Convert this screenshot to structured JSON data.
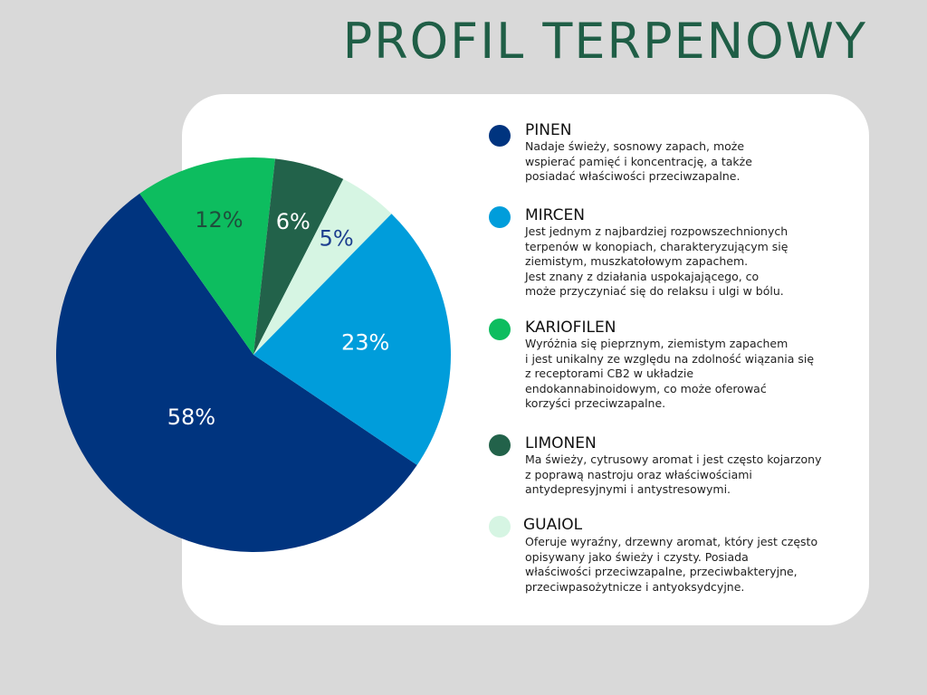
{
  "title": "PROFIL TERPENOWY",
  "chart_data": {
    "type": "pie",
    "slices": [
      {
        "label": "PINEN",
        "value": 58,
        "display": "58%",
        "color": "#00347f",
        "label_color": "#ffffff"
      },
      {
        "label": "KARIOFILEN",
        "value": 12,
        "display": "12%",
        "color": "#0dbd5f",
        "label_color": "#1f4e3c"
      },
      {
        "label": "LIMONEN",
        "value": 6,
        "display": "6%",
        "color": "#22624a",
        "label_color": "#ffffff"
      },
      {
        "label": "GUAIOL",
        "value": 5,
        "display": "5%",
        "color": "#d6f5e3",
        "label_color": "#1d3f8f"
      },
      {
        "label": "MIRCEN",
        "value": 23,
        "display": "23%",
        "color": "#009ddb",
        "label_color": "#ffffff"
      }
    ]
  },
  "legend": [
    {
      "name": "PINEN",
      "color": "#00347f",
      "desc": "Nadaje świeży, sosnowy zapach, może\nwspierać pamięć i koncentrację, a także\nposiadać właściwości przeciwzapalne."
    },
    {
      "name": "MIRCEN",
      "color": "#009ddb",
      "desc": "Jest jednym z najbardziej rozpowszechnionych\nterpenów w konopiach, charakteryzującym się\nziemistym, muszkatołowym zapachem.\nJest znany z działania uspokajającego, co\nmoże przyczyniać się do relaksu i ulgi w bólu."
    },
    {
      "name": "KARIOFILEN",
      "color": "#0dbd5f",
      "desc": "Wyróżnia się pieprznym, ziemistym zapachem\ni jest unikalny ze względu na zdolność wiązania się\nz receptorami CB2 w układzie\nendokannabinoidowym, co może oferować\nkorzyści przeciwzapalne."
    },
    {
      "name": "LIMONEN",
      "color": "#22624a",
      "desc": "Ma świeży, cytrusowy aromat i jest często kojarzony\nz poprawą nastroju oraz właściwościami\nantydepresyjnymi i antystresowymi."
    },
    {
      "name": "GUAIOL",
      "color": "#d6f5e3",
      "desc": "Oferuje wyraźny, drzewny aromat, który jest często\nopisywany jako świeży i czysty. Posiada\nwłaściwości przeciwzapalne, przeciwbakteryjne,\nprzeciwpasożytnicze i antyoksydcyjne."
    }
  ]
}
